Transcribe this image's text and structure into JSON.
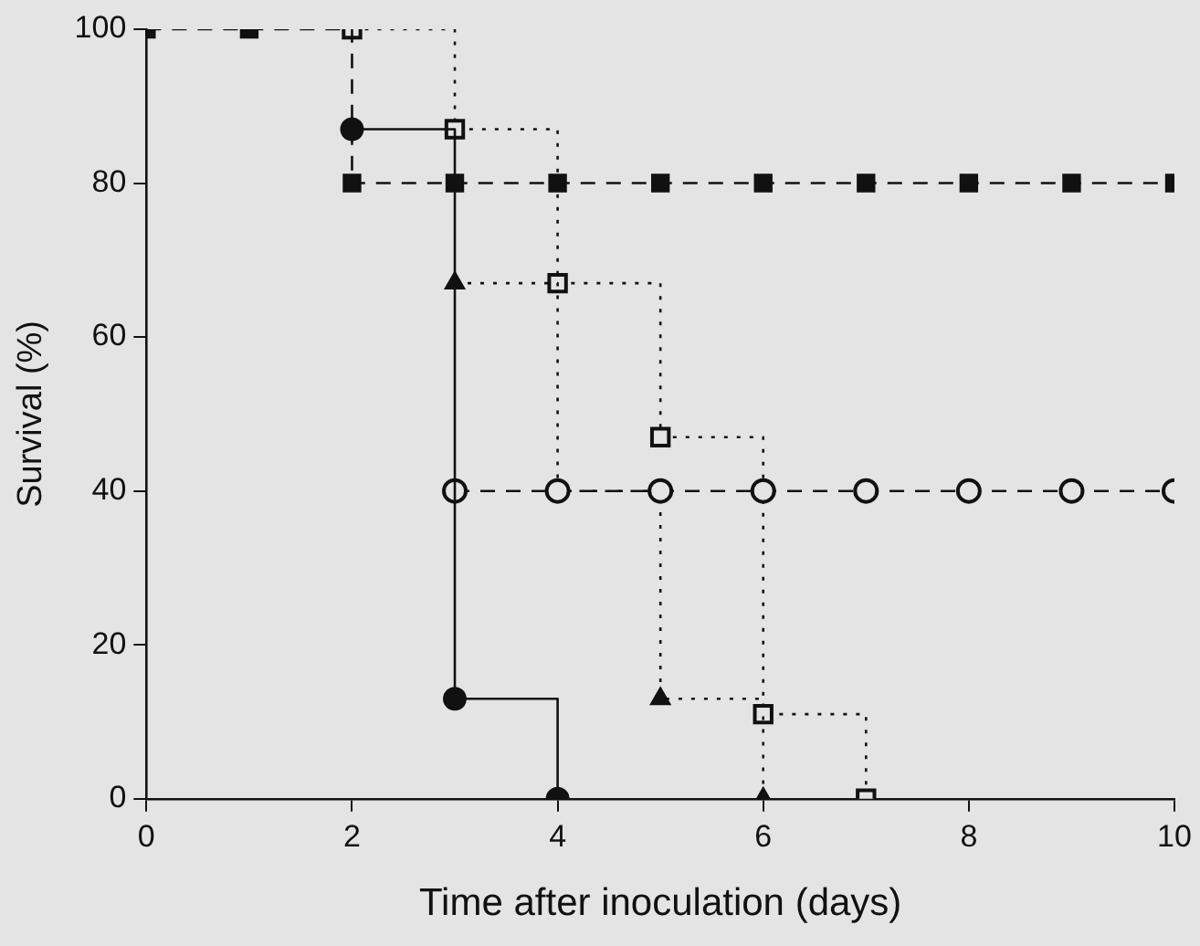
{
  "chart_data": {
    "type": "step",
    "xlabel": "Time after inoculation (days)",
    "ylabel": "Survival (%)",
    "xlim": [
      0,
      10
    ],
    "xticks": [
      0,
      2,
      4,
      6,
      8,
      10
    ],
    "ylim": [
      0,
      100
    ],
    "yticks": [
      0,
      20,
      40,
      60,
      80,
      100
    ],
    "grid": false,
    "legend": false,
    "series": [
      {
        "color": "#111111",
        "marker": "square",
        "line_style": "dashed",
        "x": [
          0,
          1,
          2,
          3,
          4,
          5,
          6,
          7,
          8,
          9,
          10
        ],
        "values": [
          100,
          100,
          80,
          80,
          80,
          80,
          80,
          80,
          80,
          80,
          80
        ]
      },
      {
        "color": "#111111",
        "marker": "circle",
        "line_style": "solid",
        "x": [
          2,
          3,
          4
        ],
        "values": [
          87,
          13,
          0
        ]
      },
      {
        "color": "#111111",
        "marker": "circle",
        "line_style": "dashed",
        "x": [
          3,
          4,
          5,
          6,
          7,
          8,
          9,
          10
        ],
        "values": [
          40,
          40,
          40,
          40,
          40,
          40,
          40,
          40
        ]
      },
      {
        "color": "#111111",
        "marker": "triangle",
        "line_style": "dotted",
        "x": [
          3,
          4,
          5,
          6
        ],
        "values": [
          67,
          40,
          13,
          0
        ]
      },
      {
        "color": "#111111",
        "marker": "square",
        "line_style": "dotted",
        "x": [
          2,
          3,
          4,
          5,
          6,
          7
        ],
        "values": [
          100,
          87,
          67,
          47,
          11,
          0
        ]
      }
    ]
  }
}
